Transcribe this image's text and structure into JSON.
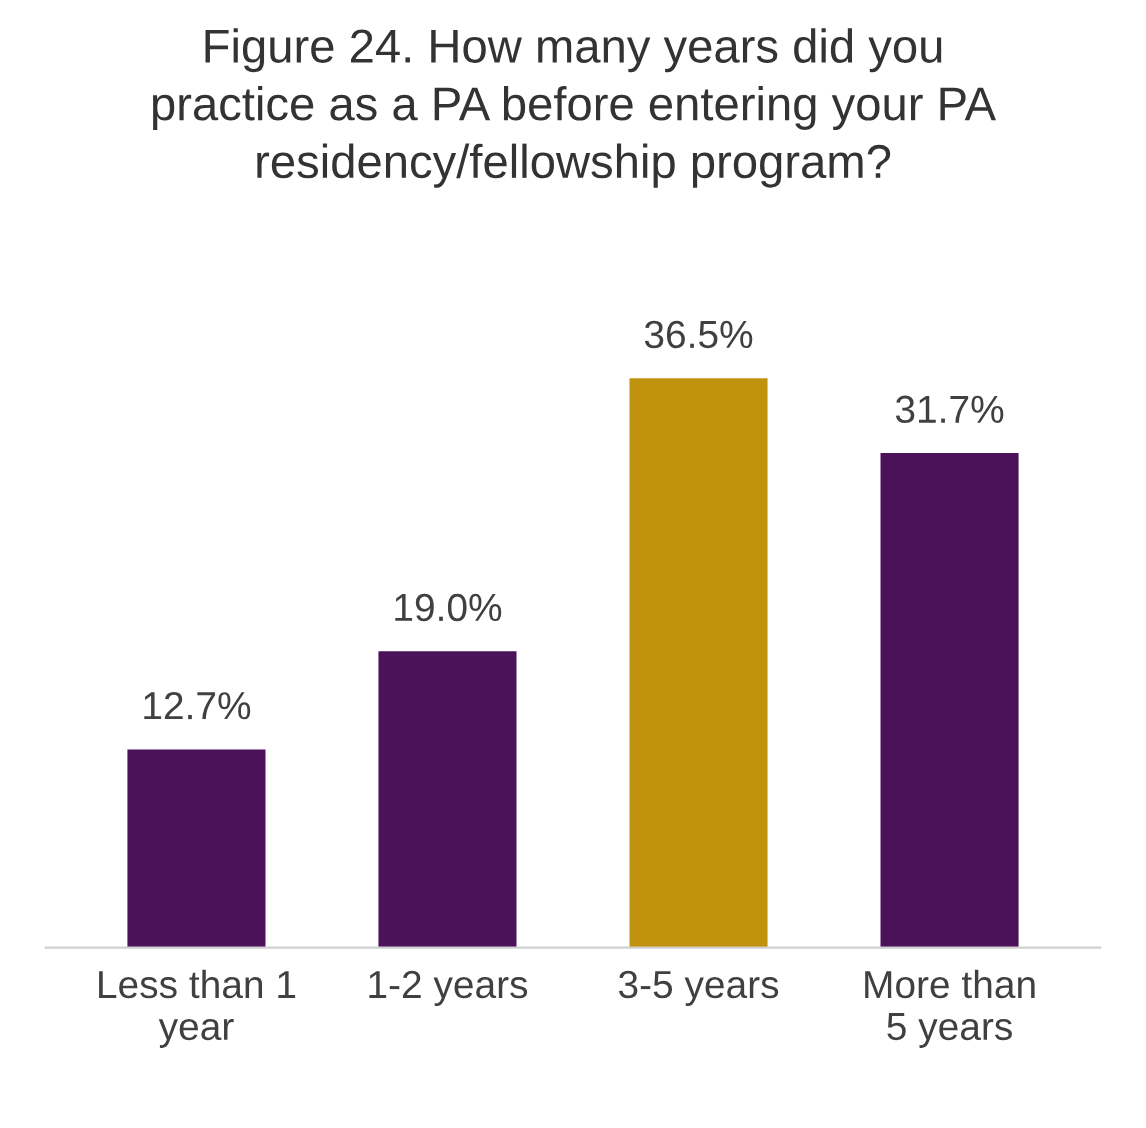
{
  "chart_data": {
    "type": "bar",
    "title": "Figure 24. How many years did you\npractice as a PA before entering your PA\nresidency/fellowship program?",
    "categories": [
      "Less than 1\nyear",
      "1-2 years",
      "3-5 years",
      "More than\n5 years"
    ],
    "values": [
      12.7,
      19.0,
      36.5,
      31.7
    ],
    "value_labels": [
      "12.7%",
      "19.0%",
      "36.5%",
      "31.7%"
    ],
    "colors": [
      "#4b125a",
      "#4b125a",
      "#c1920e",
      "#4b125a"
    ],
    "grid": false,
    "legend": false
  }
}
